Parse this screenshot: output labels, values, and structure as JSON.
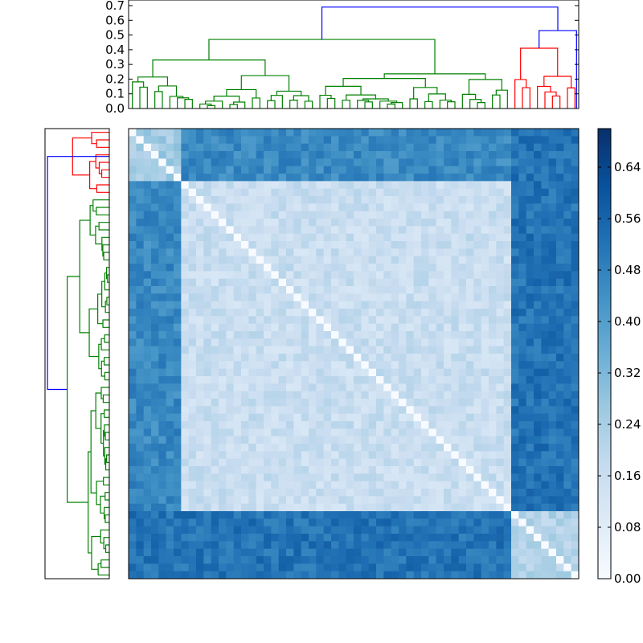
{
  "chart_data": [
    {
      "type": "dendrogram",
      "orientation": "top",
      "ylim": [
        0.0,
        0.7
      ],
      "yticks": [
        "0.0",
        "0.1",
        "0.2",
        "0.3",
        "0.4",
        "0.5",
        "0.6",
        "0.7"
      ],
      "link_colors": {
        "root": "#0000ff",
        "cluster_a": "#008000",
        "cluster_b": "#ff0000"
      },
      "leaf_count": 60,
      "cluster_sizes": {
        "cluster_a": 51,
        "cluster_b": 9
      },
      "merge_heights": {
        "root": 0.69,
        "cluster_a": 0.47,
        "cluster_a_sub": 0.4,
        "cluster_b": 0.41,
        "blue_join": 0.53
      }
    },
    {
      "type": "dendrogram",
      "orientation": "left",
      "link_colors": {
        "root": "#0000ff",
        "cluster_a": "#008000",
        "cluster_b": "#ff0000"
      },
      "leaf_count": 60
    },
    {
      "type": "heatmap",
      "rows": 60,
      "cols": 60,
      "colormap": "Blues",
      "vmin": 0.0,
      "vmax": 0.7,
      "description_groups": {
        "cluster_a": [
          7,
          50
        ],
        "cluster_b": [
          51,
          59
        ],
        "edge_block": [
          0,
          6
        ]
      },
      "diagonal_value": 0.0
    },
    {
      "type": "colorbar",
      "ticks": [
        "0.00",
        "0.08",
        "0.16",
        "0.24",
        "0.32",
        "0.40",
        "0.48",
        "0.56",
        "0.64"
      ],
      "range": [
        0.0,
        0.7
      ]
    }
  ]
}
